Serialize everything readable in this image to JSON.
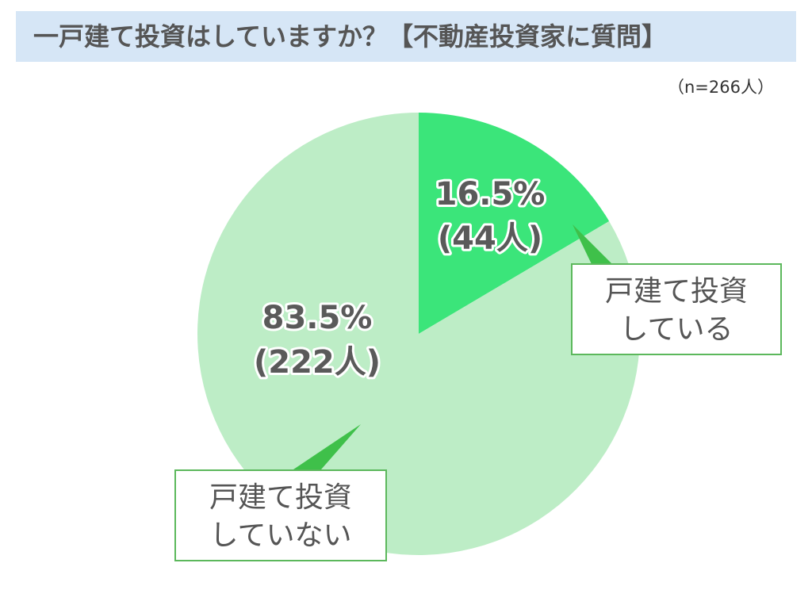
{
  "header": {
    "title": "一戸建て投資はしていますか？【不動産投資家に質問】",
    "sample_size": "（n=266人）"
  },
  "colors": {
    "title_bg": "#d6e6f6",
    "slice_invest": "#3be57a",
    "slice_no_invest": "#bdedc6",
    "callout_border": "#5cb85c",
    "pointer": "#3fc04a"
  },
  "chart_data": {
    "type": "pie",
    "title": "一戸建て投資はしていますか？【不動産投資家に質問】",
    "total": 266,
    "slices": [
      {
        "name": "戸建て投資している",
        "label_line1": "戸建て投資",
        "label_line2": "している",
        "percent": 16.5,
        "count": 44,
        "percent_text": "16.5%",
        "count_text": "(44人)"
      },
      {
        "name": "戸建て投資していない",
        "label_line1": "戸建て投資",
        "label_line2": "していない",
        "percent": 83.5,
        "count": 222,
        "percent_text": "83.5%",
        "count_text": "(222人)"
      }
    ]
  }
}
